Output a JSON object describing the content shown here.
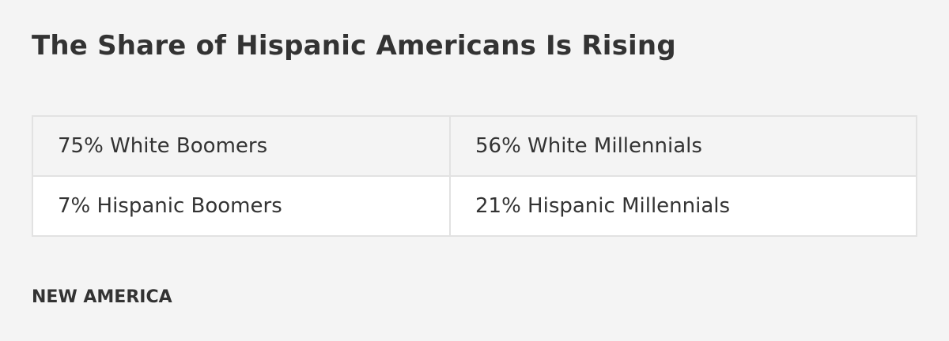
{
  "header": {
    "title": "The Share of Hispanic Americans Is Rising"
  },
  "table": {
    "rows": [
      [
        "75% White Boomers",
        "56% White Millennials"
      ],
      [
        "7% Hispanic Boomers",
        "21% Hispanic Millennials"
      ]
    ]
  },
  "footer": {
    "source": "NEW AMERICA"
  }
}
